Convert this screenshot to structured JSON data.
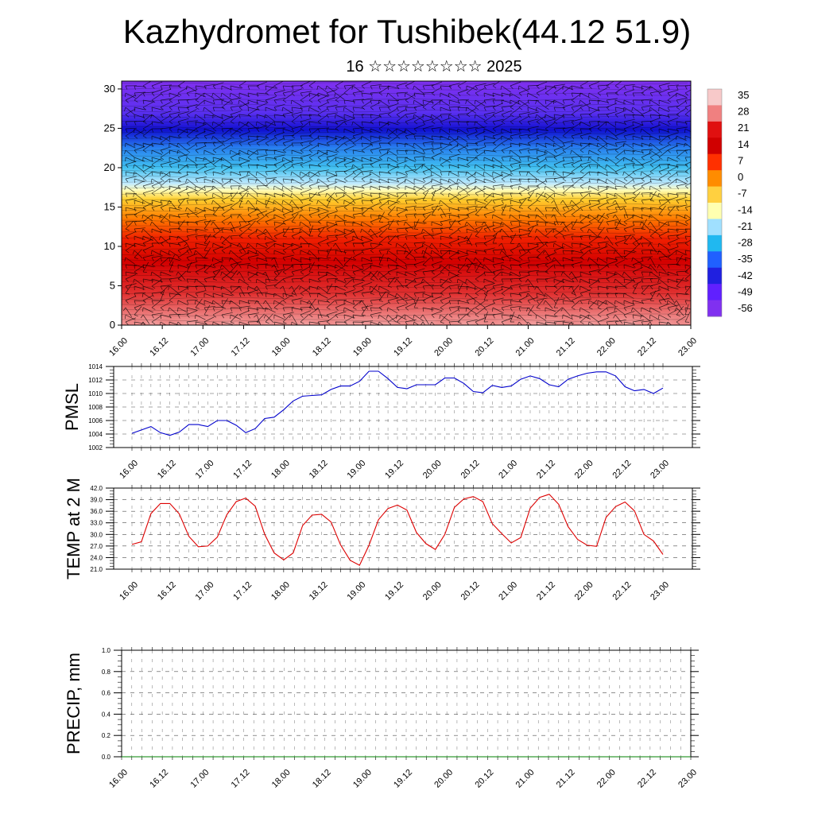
{
  "title": "Kazhydromet for Tushibek(44.12 51.9)",
  "subtitle": "16 ☆☆☆☆☆☆☆☆ 2025",
  "chart_data": [
    {
      "type": "heatmap",
      "panel": "wind-temperature-cross-section",
      "x_ticks": [
        "16.00",
        "16.12",
        "17.00",
        "17.12",
        "18.00",
        "18.12",
        "19.00",
        "19.12",
        "20.00",
        "20.12",
        "21.00",
        "21.12",
        "22.00",
        "22.12",
        "23.00"
      ],
      "y_ticks": [
        0,
        5,
        10,
        15,
        20,
        25,
        30
      ],
      "ylim": [
        0,
        31
      ],
      "colorbar_labels": [
        "35",
        "28",
        "21",
        "14",
        "7",
        "0",
        "-7",
        "-14",
        "-21",
        "-28",
        "-35",
        "-42",
        "-49",
        "-56"
      ],
      "colorbar_colors": [
        "#f7c9c9",
        "#f08080",
        "#e01010",
        "#d00000",
        "#ff3000",
        "#ff8c00",
        "#ffd040",
        "#ffffb0",
        "#a0e0ff",
        "#20b8f0",
        "#2060ff",
        "#2020e0",
        "#6020ff",
        "#8030f0"
      ],
      "vertical_profile": [
        {
          "z": 0,
          "color": "#f2a0a0"
        },
        {
          "z": 4,
          "color": "#e03030"
        },
        {
          "z": 8,
          "color": "#d40000"
        },
        {
          "z": 11,
          "color": "#f02000"
        },
        {
          "z": 13.5,
          "color": "#ff7a00"
        },
        {
          "z": 16,
          "color": "#ffd030"
        },
        {
          "z": 17.2,
          "color": "#ffffc0"
        },
        {
          "z": 18,
          "color": "#c0eaff"
        },
        {
          "z": 20,
          "color": "#40c0f0"
        },
        {
          "z": 22.5,
          "color": "#2880f0"
        },
        {
          "z": 24.8,
          "color": "#1010d0"
        },
        {
          "z": 27,
          "color": "#5a30f0"
        },
        {
          "z": 31,
          "color": "#8030f0"
        }
      ],
      "warm_cells_x_index": [
        0.3,
        1.2,
        2.2,
        3.2,
        4.0,
        5.0,
        7.0,
        8.0,
        9.0,
        9.7,
        11.0,
        12.0,
        13.0,
        13.8
      ]
    },
    {
      "type": "line",
      "panel": "pmsl",
      "ylabel": "PMSL",
      "ylim": [
        1002,
        1014
      ],
      "y_ticks": [
        "1002",
        "1004",
        "1006",
        "1008",
        "1010",
        "1012",
        "1014"
      ],
      "x_ticks": [
        "16.00",
        "16.12",
        "17.00",
        "17.12",
        "18.00",
        "18.12",
        "19.00",
        "19.12",
        "20.00",
        "20.12",
        "21.00",
        "21.12",
        "22.00",
        "22.12",
        "23.00"
      ],
      "series": [
        {
          "color": "#0000cc",
          "values": [
            1004.1,
            1004.6,
            1005.1,
            1004.2,
            1003.8,
            1004.3,
            1005.4,
            1005.4,
            1005.1,
            1006.0,
            1006.0,
            1005.3,
            1004.2,
            1004.8,
            1006.3,
            1006.5,
            1007.6,
            1008.9,
            1009.6,
            1009.7,
            1009.8,
            1010.6,
            1011.1,
            1011.1,
            1011.8,
            1013.3,
            1013.3,
            1012.2,
            1010.9,
            1010.7,
            1011.3,
            1011.3,
            1011.3,
            1012.3,
            1012.3,
            1011.5,
            1010.3,
            1010.1,
            1011.2,
            1010.9,
            1011.1,
            1012.1,
            1012.6,
            1012.2,
            1011.3,
            1011.0,
            1012.1,
            1012.6,
            1013.0,
            1013.2,
            1013.2,
            1012.6,
            1011.0,
            1010.4,
            1010.6,
            1010.0,
            1010.8
          ]
        }
      ]
    },
    {
      "type": "line",
      "panel": "temp-2m",
      "ylabel": "TEMP at 2 M",
      "ylim": [
        21.0,
        42.0
      ],
      "y_ticks": [
        "21.0",
        "24.0",
        "27.0",
        "30.0",
        "33.0",
        "36.0",
        "39.0",
        "42.0"
      ],
      "x_ticks": [
        "16.00",
        "16.12",
        "17.00",
        "17.12",
        "18.00",
        "18.12",
        "19.00",
        "19.12",
        "20.00",
        "20.12",
        "21.00",
        "21.12",
        "22.00",
        "22.12",
        "23.00"
      ],
      "series": [
        {
          "color": "#dd0000",
          "values": [
            27.4,
            28.1,
            35.4,
            38.0,
            38.0,
            35.3,
            29.5,
            26.8,
            27.0,
            29.3,
            35.1,
            38.5,
            39.4,
            37.3,
            30.0,
            25.2,
            23.4,
            25.2,
            32.3,
            35.0,
            35.2,
            33.2,
            27.3,
            23.3,
            22.0,
            27.2,
            33.8,
            36.7,
            37.6,
            36.3,
            30.5,
            27.6,
            26.1,
            30.0,
            37.0,
            39.2,
            39.8,
            38.5,
            32.8,
            30.2,
            27.8,
            29.2,
            36.8,
            39.6,
            40.4,
            37.8,
            32.0,
            28.7,
            27.2,
            26.9,
            34.4,
            37.2,
            38.4,
            36.1,
            30.0,
            28.3,
            24.8
          ]
        }
      ]
    },
    {
      "type": "line",
      "panel": "precip",
      "ylabel": "PRECIP, mm",
      "ylim": [
        0.0,
        1.0
      ],
      "y_ticks": [
        "0.0",
        "0.2",
        "0.4",
        "0.6",
        "0.8",
        "1.0"
      ],
      "x_ticks": [
        "16.00",
        "16.12",
        "17.00",
        "17.12",
        "18.00",
        "18.12",
        "19.00",
        "19.12",
        "20.00",
        "20.12",
        "21.00",
        "21.12",
        "22.00",
        "22.12",
        "23.00"
      ],
      "series": [
        {
          "color": "#008000",
          "values": [
            0,
            0,
            0,
            0,
            0,
            0,
            0,
            0,
            0,
            0,
            0,
            0,
            0,
            0,
            0,
            0,
            0,
            0,
            0,
            0,
            0,
            0,
            0,
            0,
            0,
            0,
            0,
            0,
            0,
            0,
            0,
            0,
            0,
            0,
            0,
            0,
            0,
            0,
            0,
            0,
            0,
            0,
            0,
            0,
            0,
            0,
            0,
            0,
            0,
            0,
            0,
            0,
            0,
            0,
            0,
            0,
            0
          ]
        }
      ]
    }
  ]
}
